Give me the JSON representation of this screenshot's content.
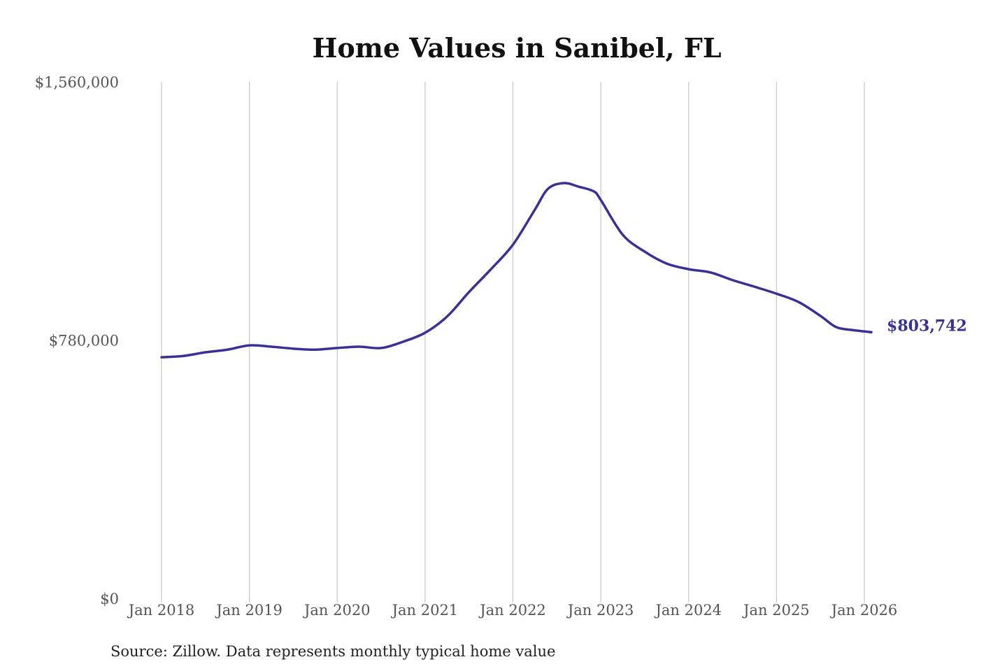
{
  "chart_data": {
    "type": "line",
    "title": "Home Values in Sanibel, FL",
    "source": "Source: Zillow. Data represents monthly typical home value",
    "xlabel": "",
    "ylabel": "",
    "ylim": [
      0,
      1560000
    ],
    "y_ticks": [
      0,
      780000,
      1560000
    ],
    "y_tick_labels": [
      "$0",
      "$780,000",
      "$1,560,000"
    ],
    "x_ticks": [
      2018,
      2019,
      2020,
      2021,
      2022,
      2023,
      2024,
      2025,
      2026
    ],
    "x_tick_labels": [
      "Jan 2018",
      "Jan 2019",
      "Jan 2020",
      "Jan 2021",
      "Jan 2022",
      "Jan 2023",
      "Jan 2024",
      "Jan 2025",
      "Jan 2026"
    ],
    "grid": "vertical",
    "line_color": "#3a3096",
    "end_label": "$803,742",
    "series": [
      {
        "x": [
          2018.0,
          2018.25,
          2018.5,
          2018.75,
          2019.0,
          2019.25,
          2019.5,
          2019.75,
          2020.0,
          2020.25,
          2020.5,
          2020.75,
          2021.0,
          2021.25,
          2021.5,
          2021.75,
          2022.0,
          2022.25,
          2022.4,
          2022.58,
          2022.75,
          2022.92,
          2023.0,
          2023.25,
          2023.5,
          2023.75,
          2024.0,
          2024.25,
          2024.5,
          2024.75,
          2025.0,
          2025.25,
          2025.5,
          2025.68,
          2025.87,
          2026.08
        ],
        "y": [
          728000,
          732000,
          743000,
          751000,
          764000,
          760000,
          754000,
          751000,
          756000,
          760000,
          756000,
          775000,
          802000,
          851000,
          925000,
          994000,
          1068000,
          1174000,
          1237000,
          1254000,
          1243000,
          1229000,
          1203000,
          1098000,
          1047000,
          1011000,
          994000,
          984000,
          961000,
          941000,
          920000,
          895000,
          853000,
          819000,
          810000,
          803742
        ]
      }
    ]
  }
}
